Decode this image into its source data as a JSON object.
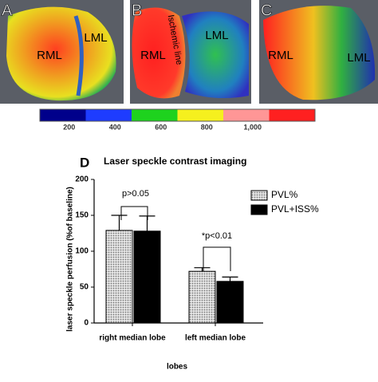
{
  "panels": [
    {
      "label": "A",
      "texts": [
        "RML",
        "LML"
      ]
    },
    {
      "label": "B",
      "texts": [
        "RML",
        "LML",
        "Ischemic line"
      ]
    },
    {
      "label": "C",
      "texts": [
        "RML",
        "LML"
      ]
    }
  ],
  "colorbar": {
    "ticks": [
      200,
      400,
      600,
      800,
      {
        "value": 1000,
        "label": "1,000"
      }
    ],
    "lim": [
      0,
      1200
    ],
    "colors": [
      "#00008b",
      "#1e3cff",
      "#1ed21e",
      "#f5f01e",
      "#ff9696",
      "#ff2020"
    ]
  },
  "chart_data": {
    "type": "bar",
    "panel_label": "D",
    "title": "Laser speckle contrast imaging",
    "y_label": "laser speckle perfusion (%of baseline)",
    "x_label": "lobes",
    "categories": [
      "right median lobe",
      "left median lobe"
    ],
    "series": [
      {
        "name": "PVL%",
        "color": "#bdbdbd",
        "values": [
          129,
          72
        ],
        "errors": [
          21,
          5
        ]
      },
      {
        "name": "PVL+ISS%",
        "color": "#000000",
        "values": [
          128,
          58
        ],
        "errors": [
          21,
          6
        ]
      }
    ],
    "annotations": [
      "p>0.05",
      "*p<0.01"
    ],
    "ylim": [
      0,
      200
    ],
    "yticks": [
      0,
      50,
      100,
      150,
      200
    ]
  }
}
